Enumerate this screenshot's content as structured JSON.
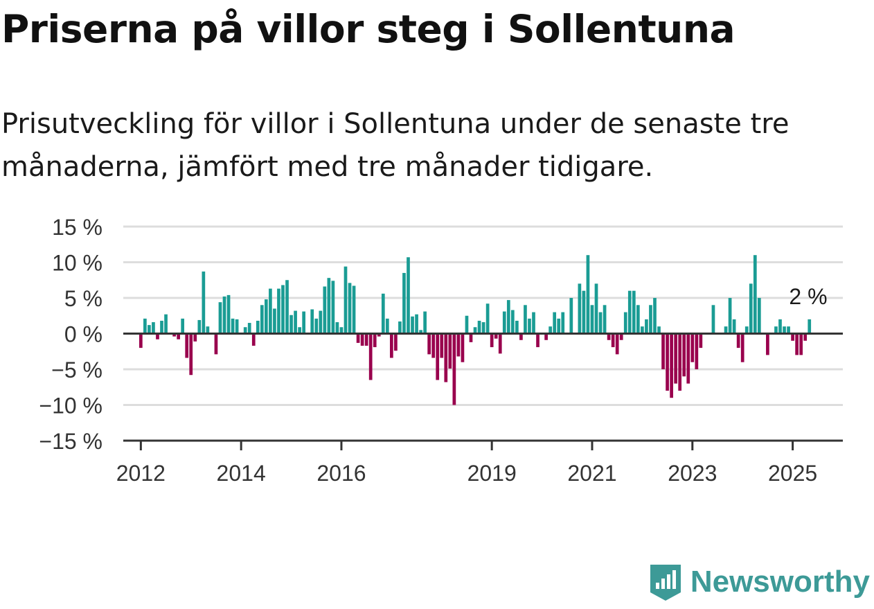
{
  "title": "Priserna på villor steg i Sollentuna",
  "subtitle": "Prisutveckling för villor i Sollentuna under de senaste tre månaderna, jämfört med tre månader tidigare.",
  "brand": "Newsworthy",
  "colors": {
    "positive": "#1a9c94",
    "negative": "#99004d",
    "grid": "#dddddd",
    "axis": "#333333"
  },
  "chart_data": {
    "type": "bar",
    "ylim": [
      -15,
      15
    ],
    "yticks": [
      15,
      10,
      5,
      0,
      -5,
      -10,
      -15
    ],
    "ytick_labels": [
      "15 %",
      "10 %",
      "5 %",
      "0 %",
      "−5 %",
      "−10 %",
      "−15 %"
    ],
    "xlim": [
      2011.65,
      2026.0
    ],
    "xticks": [
      2012,
      2014,
      2016,
      2019,
      2021,
      2023,
      2025
    ],
    "xtick_labels": [
      "2012",
      "2014",
      "2016",
      "2019",
      "2021",
      "2023",
      "2025"
    ],
    "start": "2012-01",
    "annotation": "2 %",
    "values": [
      -2,
      2.1,
      1.2,
      1.6,
      -0.8,
      1.8,
      2.7,
      0,
      -0.4,
      -0.8,
      2.1,
      -3.4,
      -5.8,
      -1.1,
      1.9,
      8.7,
      1,
      0,
      -2.9,
      4.4,
      5.2,
      5.4,
      2.1,
      2,
      0,
      0.9,
      1.5,
      -1.7,
      1.8,
      4,
      4.8,
      6.3,
      3.5,
      6.3,
      6.8,
      7.5,
      2.6,
      3.2,
      0.9,
      3.1,
      0,
      3.4,
      2.1,
      3.2,
      6.6,
      7.8,
      7.4,
      1.6,
      0.9,
      9.4,
      7.1,
      6.7,
      -1.3,
      -1.7,
      -1.7,
      -6.5,
      -1.9,
      -0.4,
      5.6,
      2.1,
      -3.4,
      -2.4,
      1.7,
      8.5,
      10.7,
      2.4,
      2.7,
      0.5,
      3.1,
      -2.9,
      -3.4,
      -6.5,
      -3.4,
      -6.8,
      -4.9,
      -10,
      -3.2,
      -4,
      2.5,
      -1.2,
      0.9,
      1.8,
      1.6,
      4.2,
      -1.9,
      -0.7,
      -2.8,
      3.1,
      4.7,
      3.3,
      1.8,
      -0.9,
      4,
      2.1,
      3,
      -1.9,
      0,
      -0.9,
      1,
      3,
      2.1,
      3,
      0,
      5,
      0,
      7,
      6,
      11,
      4,
      7,
      3,
      4,
      -0.9,
      -1.9,
      -2.9,
      -0.9,
      3,
      6,
      6,
      4,
      1,
      2,
      4,
      5,
      1,
      -5,
      -8,
      -9,
      -7,
      -8,
      -6,
      -7,
      -4,
      -5,
      -2,
      0,
      0,
      4,
      0,
      0,
      1,
      5,
      2,
      -2,
      -4,
      1,
      7,
      11,
      5,
      0,
      -3,
      0,
      1,
      2,
      1,
      1,
      -1,
      -3,
      -3,
      -1,
      2
    ]
  }
}
